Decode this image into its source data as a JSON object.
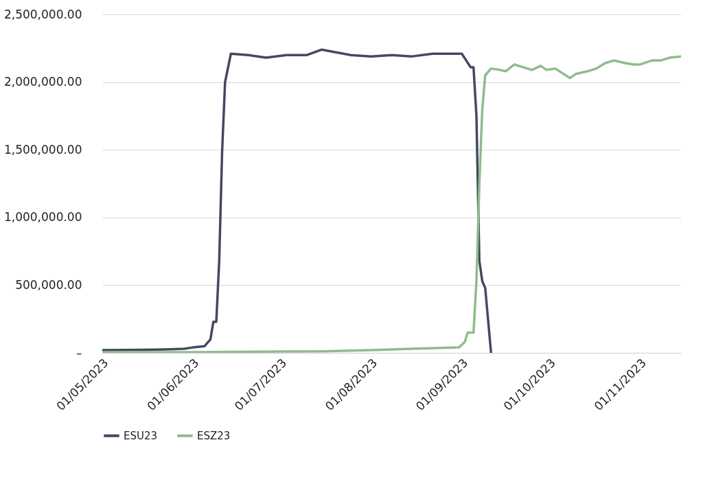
{
  "chart_data": {
    "type": "line",
    "x": [
      "2023-05-01",
      "2023-05-08",
      "2023-05-15",
      "2023-05-22",
      "2023-05-29",
      "2023-06-01",
      "2023-06-05",
      "2023-06-07",
      "2023-06-08",
      "2023-06-09",
      "2023-06-10",
      "2023-06-11",
      "2023-06-12",
      "2023-06-14",
      "2023-06-20",
      "2023-06-26",
      "2023-07-03",
      "2023-07-10",
      "2023-07-15",
      "2023-07-20",
      "2023-07-25",
      "2023-08-01",
      "2023-08-08",
      "2023-08-15",
      "2023-08-22",
      "2023-08-29",
      "2023-09-01",
      "2023-09-04",
      "2023-09-05",
      "2023-09-06",
      "2023-09-07",
      "2023-09-08",
      "2023-09-09",
      "2023-09-11"
    ],
    "series": [
      {
        "name": "ESU23",
        "color": "#434862",
        "values": [
          20000,
          22000,
          23000,
          25000,
          30000,
          40000,
          50000,
          100000,
          230000,
          230000,
          680000,
          1490000,
          2000000,
          2210000,
          2200000,
          2180000,
          2200000,
          2200000,
          2240000,
          2220000,
          2200000,
          2190000,
          2200000,
          2190000,
          2210000,
          2210000,
          2210000,
          2110000,
          2110000,
          1750000,
          680000,
          530000,
          480000,
          0
        ]
      },
      {
        "name": "ESZ23",
        "color": "#8fbc8b",
        "x": [
          "2023-05-01",
          "2023-05-15",
          "2023-06-01",
          "2023-06-15",
          "2023-07-01",
          "2023-07-15",
          "2023-08-01",
          "2023-08-15",
          "2023-08-31",
          "2023-09-02",
          "2023-09-03",
          "2023-09-05",
          "2023-09-06",
          "2023-09-07",
          "2023-09-08",
          "2023-09-09",
          "2023-09-11",
          "2023-09-14",
          "2023-09-16",
          "2023-09-19",
          "2023-09-22",
          "2023-09-25",
          "2023-09-28",
          "2023-09-30",
          "2023-10-03",
          "2023-10-08",
          "2023-10-10",
          "2023-10-14",
          "2023-10-17",
          "2023-10-20",
          "2023-10-23",
          "2023-10-27",
          "2023-10-30",
          "2023-11-01",
          "2023-11-05",
          "2023-11-08",
          "2023-11-11",
          "2023-11-15"
        ],
        "values": [
          5000,
          5000,
          5000,
          8000,
          10000,
          12000,
          20000,
          30000,
          40000,
          80000,
          150000,
          150000,
          530000,
          1250000,
          1800000,
          2050000,
          2100000,
          2090000,
          2080000,
          2130000,
          2110000,
          2090000,
          2120000,
          2090000,
          2100000,
          2030000,
          2060000,
          2080000,
          2100000,
          2140000,
          2160000,
          2140000,
          2130000,
          2130000,
          2160000,
          2160000,
          2180000,
          2190000
        ]
      }
    ],
    "xlim": [
      "2023-05-01",
      "2023-11-15"
    ],
    "xticks": [
      {
        "value": "2023-05-01",
        "label": "01/05/2023"
      },
      {
        "value": "2023-06-01",
        "label": "01/06/2023"
      },
      {
        "value": "2023-07-01",
        "label": "01/07/2023"
      },
      {
        "value": "2023-08-01",
        "label": "01/08/2023"
      },
      {
        "value": "2023-09-01",
        "label": "01/09/2023"
      },
      {
        "value": "2023-10-01",
        "label": "01/10/2023"
      },
      {
        "value": "2023-11-01",
        "label": "01/11/2023"
      }
    ],
    "ylim": [
      0,
      2500000
    ],
    "yticks": [
      {
        "value": 0,
        "label": "–"
      },
      {
        "value": 500000,
        "label": "500,000.00"
      },
      {
        "value": 1000000,
        "label": "1,000,000.00"
      },
      {
        "value": 1500000,
        "label": "1,500,000.00"
      },
      {
        "value": 2000000,
        "label": "2,000,000.00"
      },
      {
        "value": 2500000,
        "label": "2,500,000.00"
      }
    ],
    "grid": "y",
    "legend": "bottom",
    "line_style": "solid"
  }
}
